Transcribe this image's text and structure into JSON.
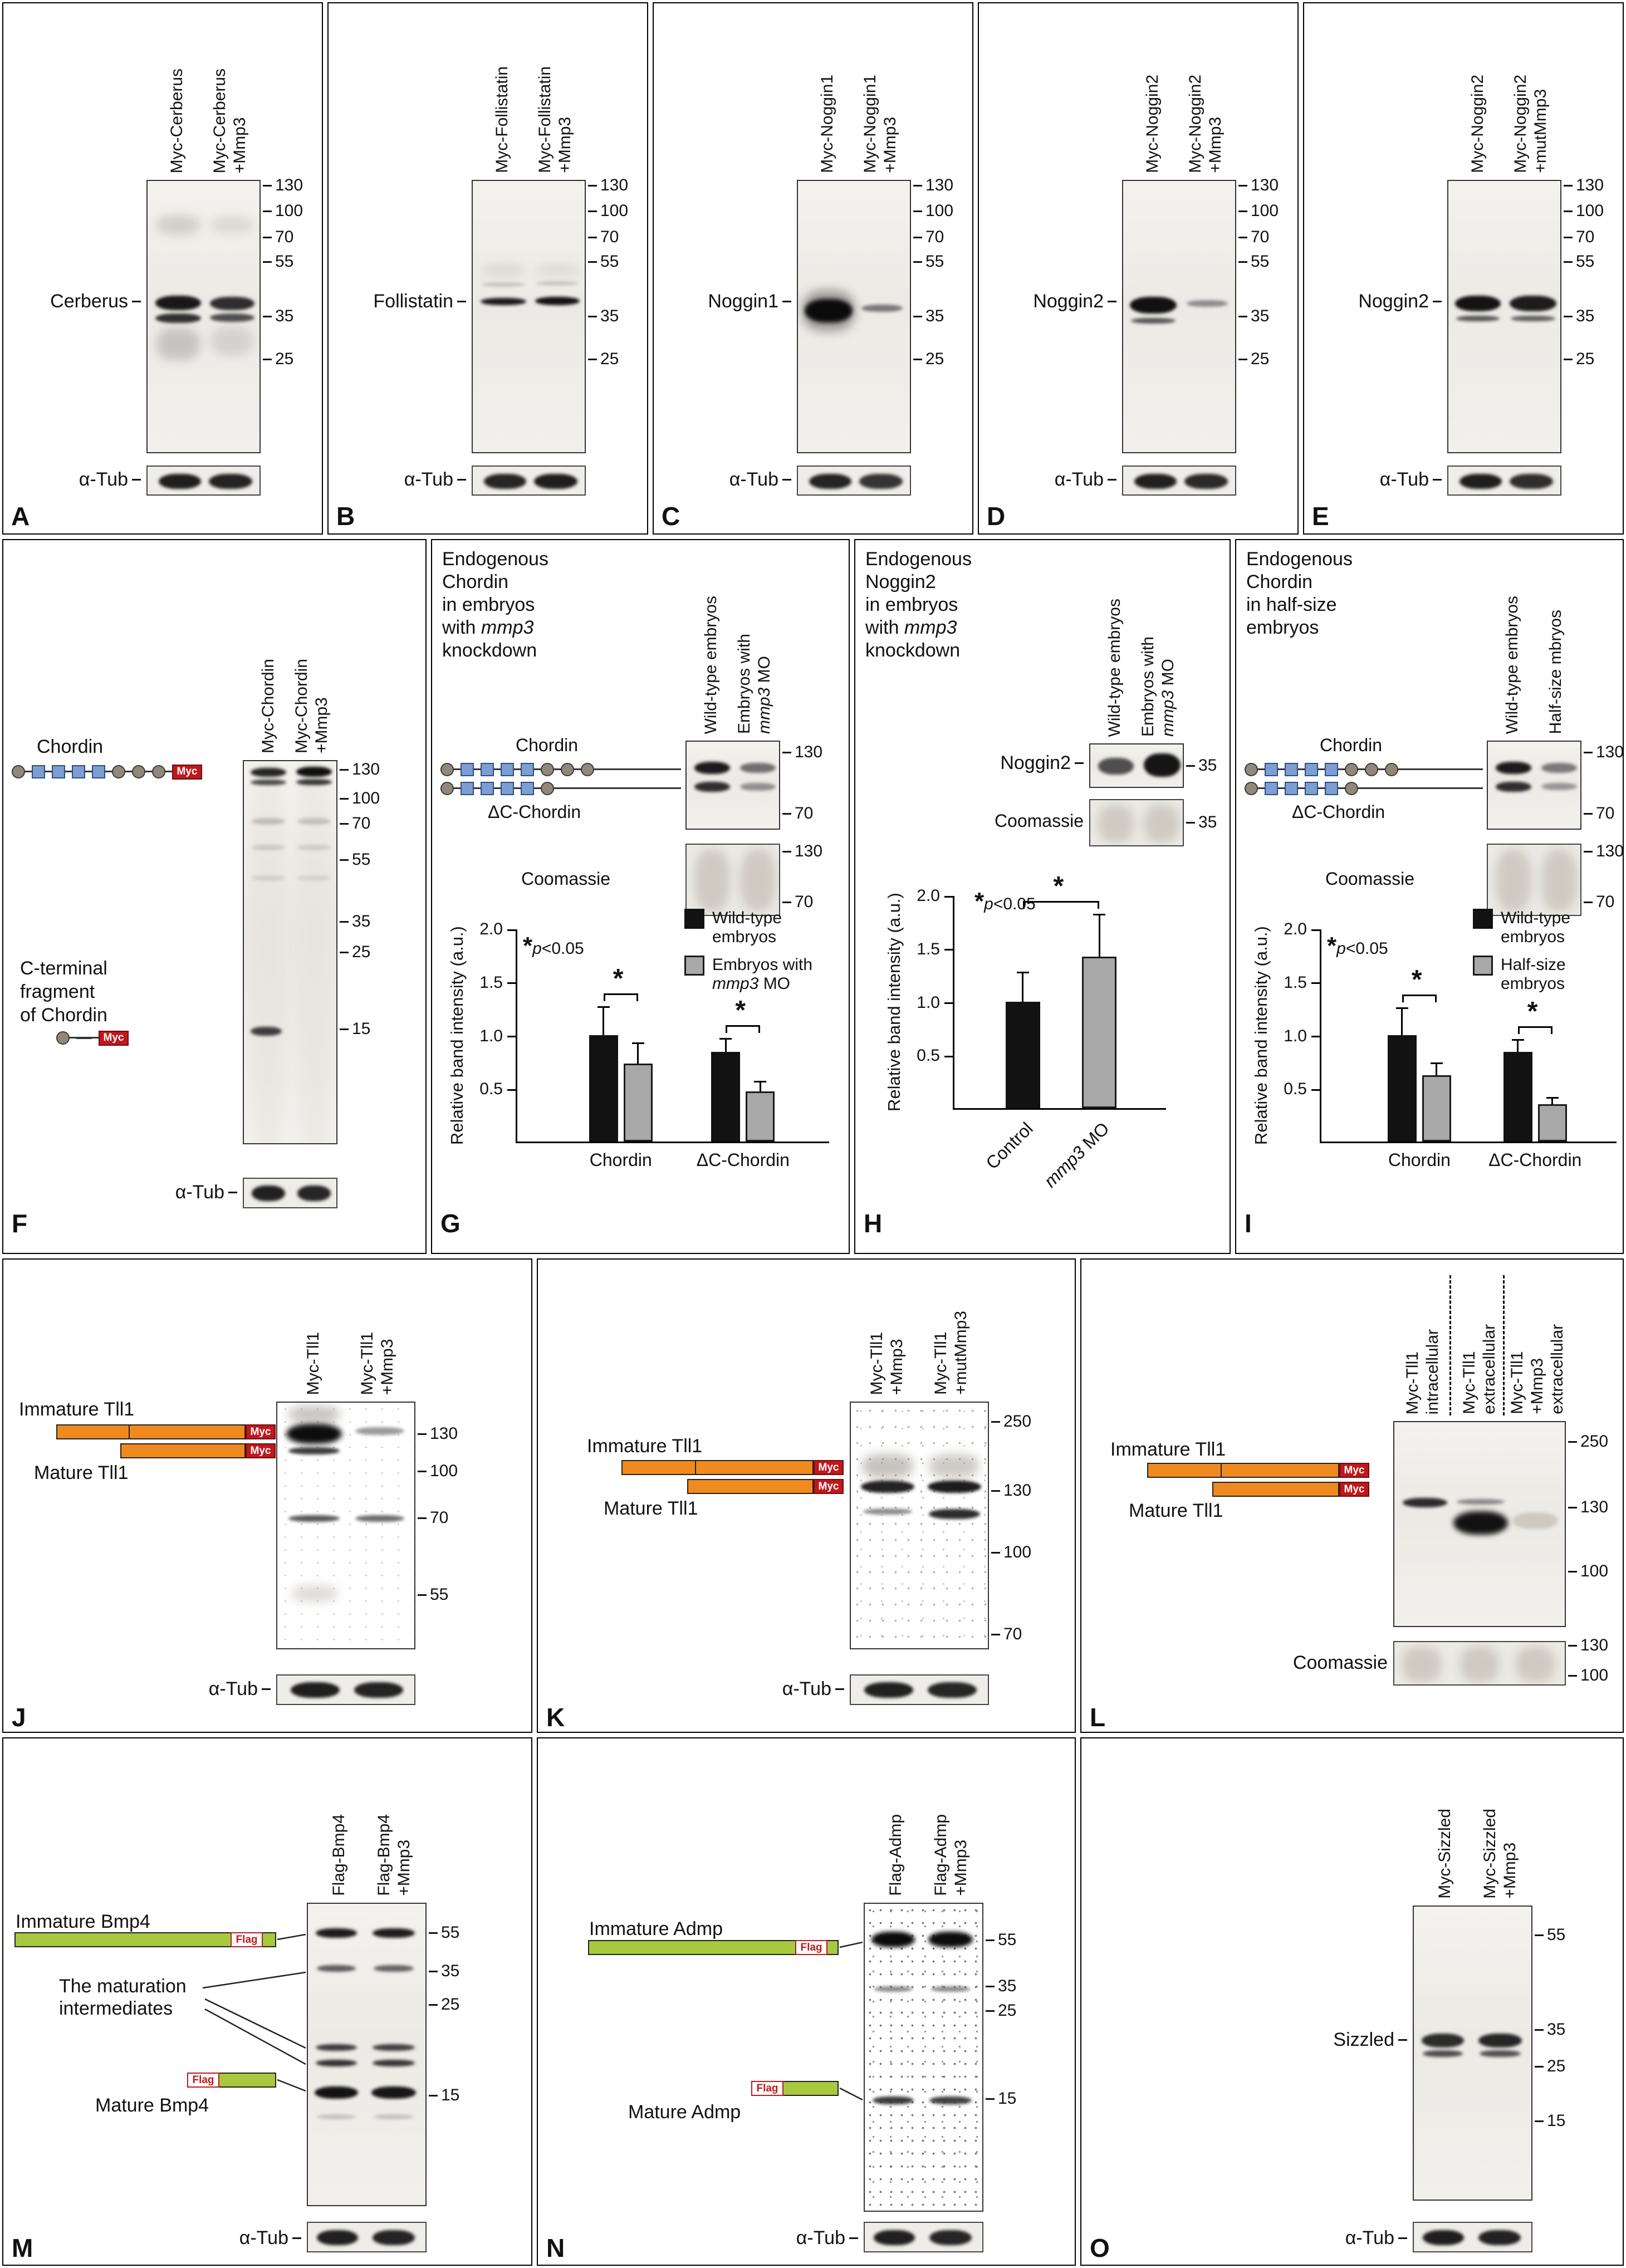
{
  "colors": {
    "bar_black": "#121212",
    "bar_gray": "#a8a8a8",
    "myc_red": "#c0181c",
    "domain_blue": "#7d9ed2",
    "domain_gray": "#8f897c",
    "tll_orange": "#f08a1e",
    "bmp_green": "#a8c93f"
  },
  "figure": {
    "panels": {
      "A": {
        "letter": "A",
        "lane_labels": [
          "Myc-Cerberus",
          "Myc-Cerberus\n+Mmp3"
        ],
        "band_labels": [
          "Cerberus"
        ],
        "mw_markers": [
          "130",
          "100",
          "70",
          "55",
          "35",
          "25"
        ],
        "loading_label": "α-Tub"
      },
      "B": {
        "letter": "B",
        "lane_labels": [
          "Myc-Follistatin",
          "Myc-Follistatin\n+Mmp3"
        ],
        "band_labels": [
          "Follistatin"
        ],
        "mw_markers": [
          "130",
          "100",
          "70",
          "55",
          "35",
          "25"
        ],
        "loading_label": "α-Tub"
      },
      "C": {
        "letter": "C",
        "lane_labels": [
          "Myc-Noggin1",
          "Myc-Noggin1\n+Mmp3"
        ],
        "band_labels": [
          "Noggin1"
        ],
        "mw_markers": [
          "130",
          "100",
          "70",
          "55",
          "35",
          "25"
        ],
        "loading_label": "α-Tub"
      },
      "D": {
        "letter": "D",
        "lane_labels": [
          "Myc-Noggin2",
          "Myc-Noggin2\n+Mmp3"
        ],
        "band_labels": [
          "Noggin2"
        ],
        "mw_markers": [
          "130",
          "100",
          "70",
          "55",
          "35",
          "25"
        ],
        "loading_label": "α-Tub"
      },
      "E": {
        "letter": "E",
        "lane_labels": [
          "Myc-Noggin2",
          "Myc-Noggin2\n+mutMmp3"
        ],
        "band_labels": [
          "Noggin2"
        ],
        "mw_markers": [
          "130",
          "100",
          "70",
          "55",
          "35",
          "25"
        ],
        "loading_label": "α-Tub"
      },
      "F": {
        "letter": "F",
        "lane_labels": [
          "Myc-Chordin",
          "Myc-Chordin\n+Mmp3"
        ],
        "diagram_labels": {
          "chordin": "Chordin",
          "cterm": "C-terminal\nfragment\nof Chordin",
          "tag": "Myc"
        },
        "mw_markers": [
          "130",
          "100",
          "70",
          "55",
          "35",
          "25",
          "15"
        ],
        "loading_label": "α-Tub"
      },
      "G": {
        "letter": "G",
        "title": {
          "pre": "Endogenous\nChordin\nin embryos\nwith ",
          "italic": "mmp3",
          "post": "\nknockdown"
        },
        "lane_labels": [
          {
            "pre": "Wild-type embryos"
          },
          {
            "pre": "Embryos with\n",
            "italic": "mmp3",
            "post": " MO"
          }
        ],
        "labels": {
          "chordin": "Chordin",
          "dc_chordin": "ΔC-Chordin",
          "coomassie": "Coomassie"
        },
        "mw1": [
          "130",
          "70"
        ],
        "mw2": [
          "130",
          "70"
        ]
      },
      "H": {
        "letter": "H",
        "title": {
          "pre": "Endogenous\nNoggin2\nin embryos\nwith ",
          "italic": "mmp3",
          "post": "\nknockdown"
        },
        "lane_labels": [
          {
            "pre": "Wild-type embryos"
          },
          {
            "pre": "Embryos with\n",
            "italic": "mmp3",
            "post": " MO"
          }
        ],
        "band_labels": [
          "Noggin2"
        ],
        "coomassie_label": "Coomassie",
        "mw1": [
          "35"
        ],
        "mw2": [
          "35"
        ]
      },
      "I": {
        "letter": "I",
        "title": {
          "pre": "Endogenous\nChordin\nin half-size\nembryos"
        },
        "lane_labels": [
          {
            "pre": "Wild-type embryos"
          },
          {
            "pre": "Half-size mbryos"
          }
        ],
        "labels": {
          "chordin": "Chordin",
          "dc_chordin": "ΔC-Chordin",
          "coomassie": "Coomassie"
        },
        "mw1": [
          "130",
          "70"
        ],
        "mw2": [
          "130",
          "70"
        ]
      },
      "J": {
        "letter": "J",
        "lane_labels": [
          "Myc-Tll1",
          "Myc-Tll1\n+Mmp3"
        ],
        "diagram_labels": {
          "immature": "Immature Tll1",
          "mature": "Mature Tll1",
          "tag": "Myc"
        },
        "mw_markers": [
          "130",
          "100",
          "70",
          "55"
        ],
        "loading_label": "α-Tub"
      },
      "K": {
        "letter": "K",
        "lane_labels": [
          "Myc-Tll1\n+Mmp3",
          "Myc-Tll1\n+mutMmp3"
        ],
        "diagram_labels": {
          "immature": "Immature Tll1",
          "mature": "Mature Tll1",
          "tag": "Myc"
        },
        "mw_markers": [
          "250",
          "130",
          "100",
          "70"
        ],
        "loading_label": "α-Tub"
      },
      "L": {
        "letter": "L",
        "lane_labels": [
          "Myc-Tll1\nintracellular",
          "Myc-Tll1\nextracellular",
          "Myc-Tll1\n+Mmp3\nextracellular"
        ],
        "diagram_labels": {
          "immature": "Immature Tll1",
          "mature": "Mature Tll1",
          "tag": "Myc"
        },
        "mw_markers": [
          "250",
          "130",
          "100"
        ],
        "coomassie_label": "Coomassie",
        "coomassie_markers": [
          "130",
          "100"
        ]
      },
      "M": {
        "letter": "M",
        "lane_labels": [
          "Flag-Bmp4",
          "Flag-Bmp4\n+Mmp3"
        ],
        "diagram_labels": {
          "immature": "Immature Bmp4",
          "intermediates": "The maturation\nintermediates",
          "mature": "Mature Bmp4",
          "tag": "Flag"
        },
        "mw_markers": [
          "55",
          "35",
          "25",
          "15"
        ],
        "loading_label": "α-Tub"
      },
      "N": {
        "letter": "N",
        "lane_labels": [
          "Flag-Admp",
          "Flag-Admp\n+Mmp3"
        ],
        "diagram_labels": {
          "immature": "Immature Admp",
          "mature": "Mature Admp",
          "tag": "Flag"
        },
        "mw_markers": [
          "55",
          "35",
          "25",
          "15"
        ],
        "loading_label": "α-Tub"
      },
      "O": {
        "letter": "O",
        "lane_labels": [
          "Myc-Sizzled",
          "Myc-Sizzled\n+Mmp3"
        ],
        "band_labels": [
          "Sizzled"
        ],
        "mw_markers": [
          "55",
          "35",
          "25",
          "15"
        ],
        "loading_label": "α-Tub"
      }
    }
  },
  "chart_data": [
    {
      "panel": "G",
      "type": "bar",
      "ylabel": "Relative band intensity (a.u.)",
      "ylim": [
        0,
        2.0
      ],
      "yticks": [
        "0.5",
        "1.0",
        "1.5",
        "2.0"
      ],
      "sig_note": {
        "pre": "*",
        "italic": "p",
        "post": "<0.05"
      },
      "categories": [
        "Chordin",
        "ΔC-Chordin"
      ],
      "series": [
        {
          "name": {
            "pre": "Wild-type\nembryos"
          },
          "color": "#121212",
          "values": [
            1.0,
            0.84
          ],
          "errors": [
            0.27,
            0.13
          ]
        },
        {
          "name": {
            "pre": "Embryos with\n",
            "italic": "mmp3",
            "post": " MO"
          },
          "color": "#a8a8a8",
          "outlined": true,
          "values": [
            0.73,
            0.47
          ],
          "errors": [
            0.2,
            0.1
          ]
        }
      ],
      "legend_position": "top-right",
      "grid": false
    },
    {
      "panel": "H",
      "type": "bar",
      "ylabel": "Relative band intensity (a.u.)",
      "ylim": [
        0,
        2.0
      ],
      "yticks": [
        "0.5",
        "1.0",
        "1.5",
        "2.0"
      ],
      "sig_note": {
        "pre": "*",
        "italic": "p",
        "post": "<0.05"
      },
      "categories": [
        {
          "pre": "Control"
        },
        {
          "italic": "mmp3",
          "post": " MO"
        }
      ],
      "bars": [
        {
          "color": "#121212",
          "value": 1.0,
          "error": 0.28
        },
        {
          "color": "#a8a8a8",
          "outlined": true,
          "value": 1.42,
          "error": 0.4
        }
      ],
      "grid": false
    },
    {
      "panel": "I",
      "type": "bar",
      "ylabel": "Relative band intensity (a.u.)",
      "ylim": [
        0,
        2.0
      ],
      "yticks": [
        "0.5",
        "1.0",
        "1.5",
        "2.0"
      ],
      "sig_note": {
        "pre": "*",
        "italic": "p",
        "post": "<0.05"
      },
      "categories": [
        "Chordin",
        "ΔC-Chordin"
      ],
      "series": [
        {
          "name": {
            "pre": "Wild-type\nembryos"
          },
          "color": "#121212",
          "values": [
            1.0,
            0.84
          ],
          "errors": [
            0.26,
            0.12
          ]
        },
        {
          "name": {
            "pre": "Half-size\nembryos"
          },
          "color": "#a8a8a8",
          "outlined": true,
          "values": [
            0.62,
            0.35
          ],
          "errors": [
            0.12,
            0.07
          ]
        }
      ],
      "legend_position": "top-right",
      "grid": false
    }
  ]
}
